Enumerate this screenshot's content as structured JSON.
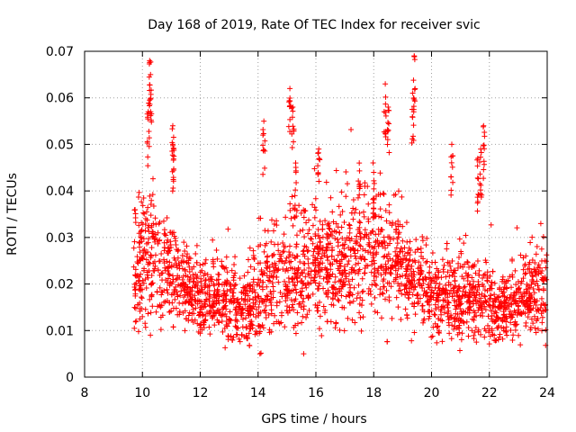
{
  "chart_data": {
    "type": "scatter",
    "title": "Day 168 of 2019, Rate Of TEC Index for receiver svic",
    "xlabel": "GPS time / hours",
    "ylabel": "ROTI / TECUs",
    "xlim": [
      8,
      24
    ],
    "ylim": [
      0,
      0.07
    ],
    "xticks": [
      8,
      10,
      12,
      14,
      16,
      18,
      20,
      22,
      24
    ],
    "xtick_labels": [
      "8",
      "10",
      "12",
      "14",
      "16",
      "18",
      "20",
      "22",
      "24"
    ],
    "yticks": [
      0,
      0.01,
      0.02,
      0.03,
      0.04,
      0.05,
      0.06,
      0.07
    ],
    "ytick_labels": [
      "0",
      "0.01",
      "0.02",
      "0.03",
      "0.04",
      "0.05",
      "0.06",
      "0.07"
    ],
    "grid": true,
    "marker": "+",
    "color": "#ff0000",
    "series": [
      {
        "name": "ROTI",
        "note": "dense point cloud ~9.7h to 24h; envelope (hour, typical, spread) sampled below; notable peaks listed",
        "envelope": [
          [
            9.7,
            0.024,
            0.012
          ],
          [
            10.0,
            0.025,
            0.013
          ],
          [
            10.3,
            0.026,
            0.012
          ],
          [
            10.6,
            0.024,
            0.01
          ],
          [
            11.0,
            0.022,
            0.01
          ],
          [
            11.5,
            0.019,
            0.008
          ],
          [
            12.0,
            0.017,
            0.007
          ],
          [
            12.5,
            0.016,
            0.007
          ],
          [
            13.0,
            0.016,
            0.007
          ],
          [
            13.5,
            0.015,
            0.007
          ],
          [
            14.0,
            0.017,
            0.009
          ],
          [
            14.5,
            0.02,
            0.01
          ],
          [
            15.0,
            0.023,
            0.011
          ],
          [
            15.5,
            0.022,
            0.01
          ],
          [
            16.0,
            0.024,
            0.011
          ],
          [
            16.5,
            0.023,
            0.01
          ],
          [
            17.0,
            0.024,
            0.011
          ],
          [
            17.5,
            0.025,
            0.011
          ],
          [
            18.0,
            0.027,
            0.012
          ],
          [
            18.5,
            0.026,
            0.011
          ],
          [
            19.0,
            0.024,
            0.01
          ],
          [
            19.5,
            0.021,
            0.009
          ],
          [
            20.0,
            0.018,
            0.008
          ],
          [
            20.5,
            0.017,
            0.008
          ],
          [
            21.0,
            0.017,
            0.008
          ],
          [
            21.5,
            0.016,
            0.008
          ],
          [
            22.0,
            0.015,
            0.007
          ],
          [
            22.5,
            0.014,
            0.006
          ],
          [
            23.0,
            0.016,
            0.007
          ],
          [
            23.5,
            0.018,
            0.009
          ],
          [
            24.0,
            0.02,
            0.01
          ]
        ],
        "peaks": [
          [
            10.25,
            0.068
          ],
          [
            10.28,
            0.065
          ],
          [
            10.2,
            0.057
          ],
          [
            11.05,
            0.054
          ],
          [
            11.05,
            0.05
          ],
          [
            14.2,
            0.055
          ],
          [
            15.1,
            0.062
          ],
          [
            15.2,
            0.058
          ],
          [
            15.3,
            0.046
          ],
          [
            16.1,
            0.049
          ],
          [
            18.4,
            0.063
          ],
          [
            18.5,
            0.058
          ],
          [
            19.4,
            0.069
          ],
          [
            19.35,
            0.061
          ],
          [
            20.7,
            0.05
          ],
          [
            21.8,
            0.054
          ],
          [
            21.7,
            0.049
          ],
          [
            21.6,
            0.047
          ],
          [
            17.5,
            0.046
          ],
          [
            18.0,
            0.044
          ]
        ]
      }
    ]
  }
}
